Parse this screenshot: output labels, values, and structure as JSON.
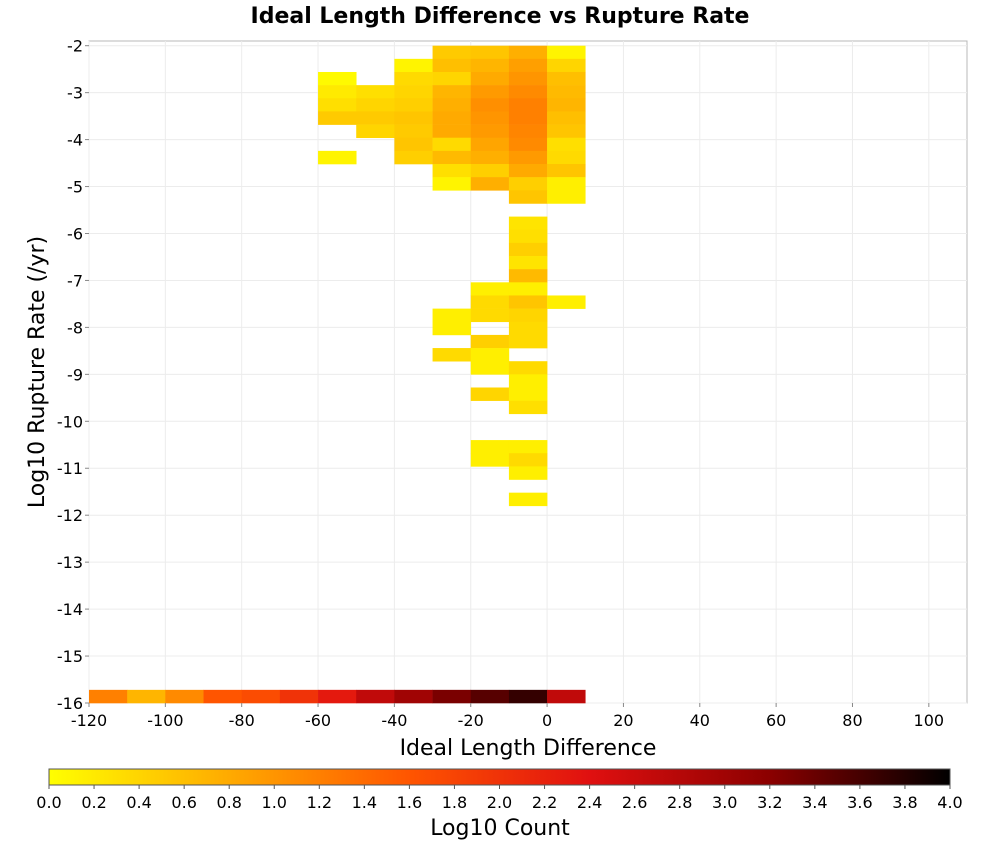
{
  "chart_data": {
    "type": "heatmap",
    "title": "Ideal Length Difference vs Rupture Rate",
    "xlabel": "Ideal Length Difference",
    "ylabel": "Log10 Rupture Rate (/yr)",
    "xlim": [
      -120,
      110
    ],
    "ylim": [
      -16,
      -1.9
    ],
    "x_ticks": [
      "-120",
      "-100",
      "-80",
      "-60",
      "-40",
      "-20",
      "0",
      "20",
      "40",
      "60",
      "80",
      "100"
    ],
    "y_ticks": [
      "-2",
      "-3",
      "-4",
      "-5",
      "-6",
      "-7",
      "-8",
      "-9",
      "-10",
      "-11",
      "-12",
      "-13",
      "-14",
      "-15",
      "-16"
    ],
    "grid": true,
    "x_bin_width": 10,
    "y_bin_height": 0.28,
    "colorbar": {
      "label": "Log10 Count",
      "min": 0.0,
      "max": 4.0,
      "ticks": [
        "0.0",
        "0.2",
        "0.4",
        "0.6",
        "0.8",
        "1.0",
        "1.2",
        "1.4",
        "1.6",
        "1.8",
        "2.0",
        "2.2",
        "2.4",
        "2.6",
        "2.8",
        "3.0",
        "3.2",
        "3.4",
        "3.6",
        "3.8",
        "4.0"
      ],
      "colors": [
        "#ffff00",
        "#ffaa00",
        "#ff5500",
        "#e01010",
        "#8b0000",
        "#000000"
      ]
    },
    "cells": [
      {
        "x": -30,
        "y": -2.28,
        "v": 0.5
      },
      {
        "x": -20,
        "y": -2.28,
        "v": 0.55
      },
      {
        "x": -10,
        "y": -2.28,
        "v": 0.75
      },
      {
        "x": 0,
        "y": -2.28,
        "v": 0.1
      },
      {
        "x": -40,
        "y": -2.56,
        "v": 0.1
      },
      {
        "x": -30,
        "y": -2.56,
        "v": 0.6
      },
      {
        "x": -20,
        "y": -2.56,
        "v": 0.7
      },
      {
        "x": -10,
        "y": -2.56,
        "v": 0.9
      },
      {
        "x": 0,
        "y": -2.56,
        "v": 0.4
      },
      {
        "x": -60,
        "y": -2.84,
        "v": 0.05
      },
      {
        "x": -40,
        "y": -2.84,
        "v": 0.35
      },
      {
        "x": -30,
        "y": -2.84,
        "v": 0.4
      },
      {
        "x": -20,
        "y": -2.84,
        "v": 0.8
      },
      {
        "x": -10,
        "y": -2.84,
        "v": 1.0
      },
      {
        "x": 0,
        "y": -2.84,
        "v": 0.6
      },
      {
        "x": -60,
        "y": -3.12,
        "v": 0.2
      },
      {
        "x": -50,
        "y": -3.12,
        "v": 0.3
      },
      {
        "x": -40,
        "y": -3.12,
        "v": 0.4
      },
      {
        "x": -30,
        "y": -3.12,
        "v": 0.7
      },
      {
        "x": -20,
        "y": -3.12,
        "v": 0.95
      },
      {
        "x": -10,
        "y": -3.12,
        "v": 1.1
      },
      {
        "x": 0,
        "y": -3.12,
        "v": 0.65
      },
      {
        "x": -60,
        "y": -3.4,
        "v": 0.3
      },
      {
        "x": -50,
        "y": -3.4,
        "v": 0.4
      },
      {
        "x": -40,
        "y": -3.4,
        "v": 0.45
      },
      {
        "x": -30,
        "y": -3.4,
        "v": 0.75
      },
      {
        "x": -20,
        "y": -3.4,
        "v": 1.05
      },
      {
        "x": -10,
        "y": -3.4,
        "v": 1.2
      },
      {
        "x": 0,
        "y": -3.4,
        "v": 0.7
      },
      {
        "x": -60,
        "y": -3.68,
        "v": 0.5
      },
      {
        "x": -50,
        "y": -3.68,
        "v": 0.5
      },
      {
        "x": -40,
        "y": -3.68,
        "v": 0.55
      },
      {
        "x": -30,
        "y": -3.68,
        "v": 0.8
      },
      {
        "x": -20,
        "y": -3.68,
        "v": 1.0
      },
      {
        "x": -10,
        "y": -3.68,
        "v": 1.2
      },
      {
        "x": 0,
        "y": -3.68,
        "v": 0.6
      },
      {
        "x": -50,
        "y": -3.96,
        "v": 0.4
      },
      {
        "x": -40,
        "y": -3.96,
        "v": 0.5
      },
      {
        "x": -30,
        "y": -3.96,
        "v": 0.8
      },
      {
        "x": -20,
        "y": -3.96,
        "v": 0.95
      },
      {
        "x": -10,
        "y": -3.96,
        "v": 1.15
      },
      {
        "x": 0,
        "y": -3.96,
        "v": 0.55
      },
      {
        "x": -40,
        "y": -4.24,
        "v": 0.55
      },
      {
        "x": -30,
        "y": -4.24,
        "v": 0.35
      },
      {
        "x": -20,
        "y": -4.24,
        "v": 0.85
      },
      {
        "x": -10,
        "y": -4.24,
        "v": 1.1
      },
      {
        "x": 0,
        "y": -4.24,
        "v": 0.3
      },
      {
        "x": -60,
        "y": -4.52,
        "v": 0.1
      },
      {
        "x": -40,
        "y": -4.52,
        "v": 0.45
      },
      {
        "x": -30,
        "y": -4.52,
        "v": 0.65
      },
      {
        "x": -20,
        "y": -4.52,
        "v": 0.75
      },
      {
        "x": -10,
        "y": -4.52,
        "v": 0.95
      },
      {
        "x": 0,
        "y": -4.52,
        "v": 0.35
      },
      {
        "x": -30,
        "y": -4.8,
        "v": 0.3
      },
      {
        "x": -20,
        "y": -4.8,
        "v": 0.45
      },
      {
        "x": -10,
        "y": -4.8,
        "v": 0.8
      },
      {
        "x": 0,
        "y": -4.8,
        "v": 0.55
      },
      {
        "x": -30,
        "y": -5.08,
        "v": 0.1
      },
      {
        "x": -20,
        "y": -5.08,
        "v": 0.75
      },
      {
        "x": -10,
        "y": -5.08,
        "v": 0.45
      },
      {
        "x": 0,
        "y": -5.08,
        "v": 0.15
      },
      {
        "x": -10,
        "y": -5.36,
        "v": 0.55
      },
      {
        "x": 0,
        "y": -5.36,
        "v": 0.15
      },
      {
        "x": -10,
        "y": -5.92,
        "v": 0.25
      },
      {
        "x": -10,
        "y": -6.2,
        "v": 0.3
      },
      {
        "x": -10,
        "y": -6.48,
        "v": 0.45
      },
      {
        "x": -10,
        "y": -6.76,
        "v": 0.25
      },
      {
        "x": -10,
        "y": -7.04,
        "v": 0.65
      },
      {
        "x": -20,
        "y": -7.32,
        "v": 0.15
      },
      {
        "x": -10,
        "y": -7.32,
        "v": 0.15
      },
      {
        "x": -20,
        "y": -7.6,
        "v": 0.35
      },
      {
        "x": -10,
        "y": -7.6,
        "v": 0.55
      },
      {
        "x": 0,
        "y": -7.6,
        "v": 0.15
      },
      {
        "x": -30,
        "y": -7.88,
        "v": 0.15
      },
      {
        "x": -20,
        "y": -7.88,
        "v": 0.35
      },
      {
        "x": -10,
        "y": -7.88,
        "v": 0.4
      },
      {
        "x": -30,
        "y": -8.16,
        "v": 0.15
      },
      {
        "x": -10,
        "y": -8.16,
        "v": 0.35
      },
      {
        "x": -20,
        "y": -8.44,
        "v": 0.45
      },
      {
        "x": -10,
        "y": -8.44,
        "v": 0.35
      },
      {
        "x": -30,
        "y": -8.72,
        "v": 0.35
      },
      {
        "x": -20,
        "y": -8.72,
        "v": 0.15
      },
      {
        "x": -20,
        "y": -9.0,
        "v": 0.15
      },
      {
        "x": -10,
        "y": -9.0,
        "v": 0.35
      },
      {
        "x": -10,
        "y": -9.28,
        "v": 0.15
      },
      {
        "x": -20,
        "y": -9.56,
        "v": 0.4
      },
      {
        "x": -10,
        "y": -9.56,
        "v": 0.15
      },
      {
        "x": -10,
        "y": -9.84,
        "v": 0.3
      },
      {
        "x": -20,
        "y": -10.68,
        "v": 0.15
      },
      {
        "x": -10,
        "y": -10.68,
        "v": 0.15
      },
      {
        "x": -20,
        "y": -10.96,
        "v": 0.15
      },
      {
        "x": -10,
        "y": -10.96,
        "v": 0.35
      },
      {
        "x": -10,
        "y": -11.24,
        "v": 0.15
      },
      {
        "x": -10,
        "y": -11.8,
        "v": 0.15
      },
      {
        "x": -120,
        "y": -16.0,
        "v": 1.2
      },
      {
        "x": -110,
        "y": -16.0,
        "v": 0.7
      },
      {
        "x": -100,
        "y": -16.0,
        "v": 1.1
      },
      {
        "x": -90,
        "y": -16.0,
        "v": 1.6
      },
      {
        "x": -80,
        "y": -16.0,
        "v": 1.7
      },
      {
        "x": -70,
        "y": -16.0,
        "v": 2.0
      },
      {
        "x": -60,
        "y": -16.0,
        "v": 2.3
      },
      {
        "x": -50,
        "y": -16.0,
        "v": 2.7
      },
      {
        "x": -40,
        "y": -16.0,
        "v": 3.0
      },
      {
        "x": -30,
        "y": -16.0,
        "v": 3.3
      },
      {
        "x": -20,
        "y": -16.0,
        "v": 3.5
      },
      {
        "x": -10,
        "y": -16.0,
        "v": 3.7
      },
      {
        "x": 0,
        "y": -16.0,
        "v": 2.7
      }
    ]
  }
}
